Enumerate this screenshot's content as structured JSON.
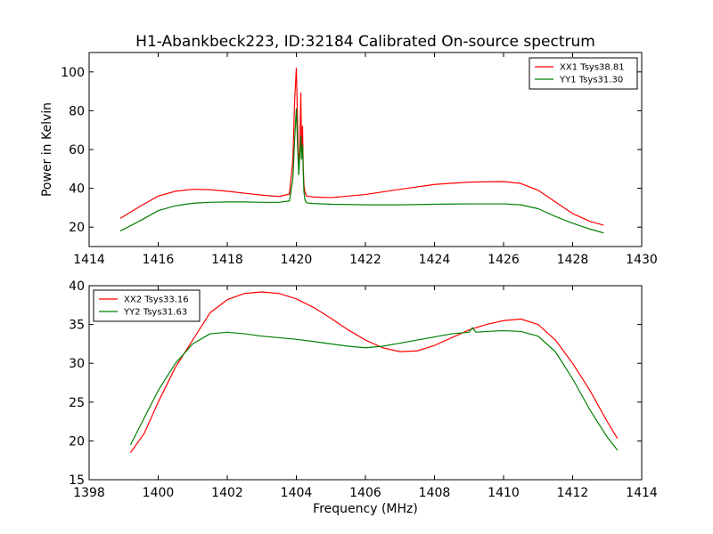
{
  "chart_data": [
    {
      "type": "line",
      "title": "H1-Abankbeck223, ID:32184 Calibrated On-source spectrum",
      "xlabel": "",
      "ylabel": "Power in Kelvin",
      "xlim": [
        1414,
        1430
      ],
      "ylim": [
        10,
        110
      ],
      "xticks": [
        1414,
        1416,
        1418,
        1420,
        1422,
        1424,
        1426,
        1428,
        1430
      ],
      "yticks": [
        20,
        40,
        60,
        80,
        100
      ],
      "legend_position": "top-right",
      "grid": false,
      "series": [
        {
          "name": "XX1 Tsys38.81",
          "color": "#ff0000",
          "x": [
            1414.9,
            1415.5,
            1416.0,
            1416.5,
            1417.0,
            1417.5,
            1418.0,
            1418.5,
            1419.0,
            1419.5,
            1419.8,
            1419.9,
            1419.95,
            1420.0,
            1420.04,
            1420.07,
            1420.1,
            1420.13,
            1420.15,
            1420.18,
            1420.2,
            1420.22,
            1420.25,
            1420.3,
            1420.5,
            1421.0,
            1422.0,
            1423.0,
            1424.0,
            1425.0,
            1426.0,
            1426.5,
            1427.0,
            1427.5,
            1428.0,
            1428.5,
            1428.9
          ],
          "y": [
            24.5,
            31,
            36,
            38.5,
            39.5,
            39.3,
            38.5,
            37.5,
            36.5,
            35.8,
            37,
            55,
            85,
            102,
            70,
            50,
            60,
            89,
            60,
            72,
            50,
            42,
            38,
            36,
            35.5,
            35.2,
            36.8,
            39.5,
            42,
            43.2,
            43.5,
            42.5,
            39,
            33,
            27,
            23,
            21
          ]
        },
        {
          "name": "YY1 Tsys31.30",
          "color": "#008000",
          "x": [
            1414.9,
            1415.5,
            1416.0,
            1416.5,
            1417.0,
            1417.5,
            1418.0,
            1418.5,
            1419.0,
            1419.5,
            1419.8,
            1419.9,
            1419.95,
            1420.0,
            1420.04,
            1420.07,
            1420.1,
            1420.13,
            1420.15,
            1420.18,
            1420.2,
            1420.22,
            1420.25,
            1420.3,
            1420.5,
            1421.0,
            1422.0,
            1423.0,
            1424.0,
            1425.0,
            1426.0,
            1426.5,
            1427.0,
            1427.5,
            1428.0,
            1428.5,
            1428.9
          ],
          "y": [
            18,
            23.5,
            28.5,
            31,
            32.3,
            32.8,
            33,
            33,
            32.8,
            32.8,
            33.5,
            45,
            65,
            81,
            60,
            47,
            57,
            67,
            55,
            62,
            48,
            38,
            34,
            32.5,
            32.2,
            31.8,
            31.5,
            31.5,
            31.8,
            32,
            32,
            31.5,
            29.5,
            25.5,
            22,
            19,
            17
          ]
        }
      ]
    },
    {
      "type": "line",
      "title": "",
      "xlabel": "Frequency (MHz)",
      "ylabel": "",
      "xlim": [
        1398,
        1414
      ],
      "ylim": [
        15,
        40
      ],
      "xticks": [
        1398,
        1400,
        1402,
        1404,
        1406,
        1408,
        1410,
        1412,
        1414
      ],
      "yticks": [
        15,
        20,
        25,
        30,
        35,
        40
      ],
      "legend_position": "top-left",
      "grid": false,
      "series": [
        {
          "name": "XX2 Tsys33.16",
          "color": "#ff0000",
          "x": [
            1399.2,
            1399.6,
            1400.0,
            1400.5,
            1401.0,
            1401.5,
            1402.0,
            1402.5,
            1403.0,
            1403.5,
            1404.0,
            1404.5,
            1405.0,
            1405.5,
            1406.0,
            1406.5,
            1407.0,
            1407.5,
            1408.0,
            1408.5,
            1409.0,
            1409.5,
            1410.0,
            1410.5,
            1411.0,
            1411.5,
            1412.0,
            1412.5,
            1413.0,
            1413.3
          ],
          "y": [
            18.5,
            21,
            25,
            29.5,
            33,
            36.5,
            38.2,
            39,
            39.2,
            39,
            38.3,
            37.2,
            35.8,
            34.3,
            33,
            32,
            31.5,
            31.6,
            32.3,
            33.3,
            34.3,
            35,
            35.5,
            35.7,
            35,
            33,
            30,
            26.5,
            22.5,
            20.3
          ]
        },
        {
          "name": "YY2 Tsys31.63",
          "color": "#008000",
          "x": [
            1399.2,
            1399.6,
            1400.0,
            1400.5,
            1401.0,
            1401.5,
            1402.0,
            1402.5,
            1403.0,
            1403.5,
            1404.0,
            1404.5,
            1405.0,
            1405.5,
            1406.0,
            1406.5,
            1407.0,
            1407.5,
            1408.0,
            1408.5,
            1409.0,
            1409.1,
            1409.2,
            1409.5,
            1410.0,
            1410.5,
            1411.0,
            1411.5,
            1412.0,
            1412.5,
            1413.0,
            1413.3
          ],
          "y": [
            19.5,
            23,
            26.5,
            30,
            32.5,
            33.8,
            34,
            33.8,
            33.5,
            33.3,
            33.1,
            32.8,
            32.5,
            32.2,
            32,
            32.2,
            32.6,
            33,
            33.4,
            33.8,
            34,
            34.6,
            34,
            34.1,
            34.2,
            34.1,
            33.5,
            31.5,
            28,
            24,
            20.5,
            18.8
          ]
        }
      ]
    }
  ]
}
